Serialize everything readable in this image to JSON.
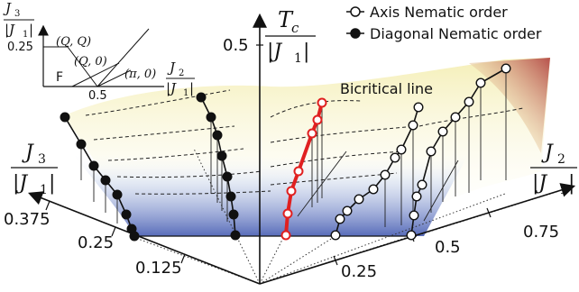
{
  "chart_data": {
    "type": "scatter",
    "title": "",
    "axes": {
      "z_axis": {
        "label_num": "T",
        "label_sub": "c",
        "label_den": "|J",
        "label_den_sub": "1",
        "label_den_close": "|",
        "tick": "0.5"
      },
      "x_axis": {
        "label_num": "J",
        "label_sub": "2",
        "label_den": "|J",
        "label_den_sub": "1",
        "label_den_close": "|",
        "ticks": [
          "0.25",
          "0.5",
          "0.75"
        ]
      },
      "y_axis": {
        "label_num": "J",
        "label_sub": "3",
        "label_den": "|J",
        "label_den_sub": "1",
        "label_den_close": "|",
        "ticks": [
          "0.125",
          "0.25",
          "0.375"
        ]
      }
    },
    "legend": {
      "placement": "top-right",
      "entries": [
        {
          "name": "Axis Nematic order",
          "marker": "open-circle"
        },
        {
          "name": "Diagonal Nematic order",
          "marker": "filled-circle"
        }
      ]
    },
    "annotations": {
      "bicritical": "Bicritical line"
    },
    "inset": {
      "y_label_num": "J",
      "y_label_sub": "3",
      "y_label_den": "|J",
      "y_label_den_sub": "1",
      "y_label_den_close": "|",
      "y_tick": "0.25",
      "x_label_num": "J",
      "x_label_sub": "2",
      "x_label_den": "|J",
      "x_label_den_sub": "1",
      "x_label_den_close": "|",
      "x_tick": "0.5",
      "phase_F": "F",
      "phase_QQ": "(Q, Q)",
      "phase_Q0": "(Q, 0)",
      "phase_pi0": "(π, 0)"
    },
    "series": [
      {
        "id": "diag_a",
        "marker": "filled",
        "color": "#111111",
        "points": [
          [
            72,
            130
          ],
          [
            90,
            160
          ],
          [
            104,
            184
          ],
          [
            117,
            200
          ],
          [
            130,
            216
          ],
          [
            140,
            238
          ],
          [
            146,
            254
          ],
          [
            149,
            262
          ]
        ]
      },
      {
        "id": "diag_b",
        "marker": "filled",
        "color": "#111111",
        "points": [
          [
            223,
            108
          ],
          [
            234,
            130
          ],
          [
            241,
            150
          ],
          [
            246,
            173
          ],
          [
            252,
            196
          ],
          [
            256,
            218
          ],
          [
            259,
            238
          ],
          [
            261,
            261
          ]
        ]
      },
      {
        "id": "bicritical",
        "marker": "open",
        "color": "#e02020",
        "points": [
          [
            357,
            114
          ],
          [
            352,
            133
          ],
          [
            346,
            148
          ],
          [
            331,
            190
          ],
          [
            323,
            212
          ],
          [
            319,
            237
          ],
          [
            317,
            261
          ]
        ]
      },
      {
        "id": "axis_a",
        "marker": "open",
        "color": "#111111",
        "points": [
          [
            464,
            119
          ],
          [
            458,
            139
          ],
          [
            445,
            166
          ],
          [
            438,
            175
          ],
          [
            427,
            194
          ],
          [
            414,
            210
          ],
          [
            398,
            221
          ],
          [
            385,
            234
          ],
          [
            377,
            243
          ],
          [
            372,
            261
          ]
        ]
      },
      {
        "id": "axis_b",
        "marker": "open",
        "color": "#111111",
        "points": [
          [
            561,
            76
          ],
          [
            533,
            92
          ],
          [
            520,
            113
          ],
          [
            505,
            130
          ],
          [
            491,
            146
          ],
          [
            478,
            168
          ],
          [
            468,
            205
          ],
          [
            462,
            218
          ],
          [
            459,
            239
          ],
          [
            456,
            261
          ]
        ]
      }
    ]
  }
}
